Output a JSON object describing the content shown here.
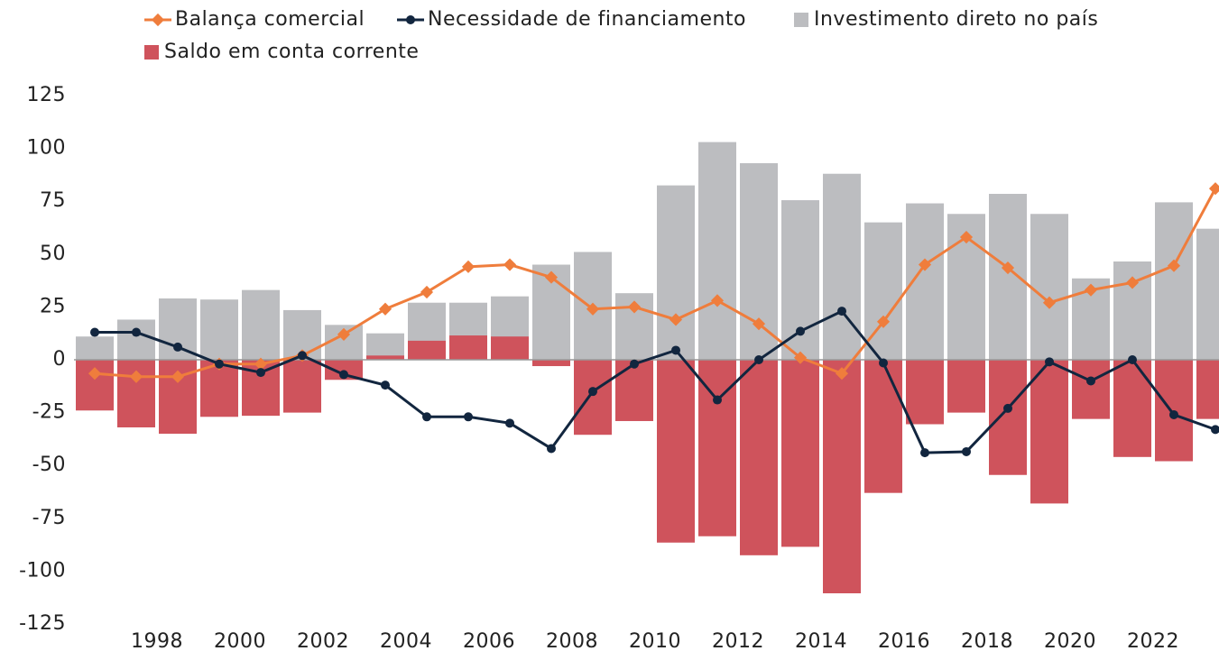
{
  "chart_data": {
    "type": "bar",
    "categories": [
      null,
      "1998",
      null,
      "2000",
      null,
      "2002",
      null,
      "2004",
      null,
      "2006",
      null,
      "2008",
      null,
      "2010",
      null,
      "2012",
      null,
      "2014",
      null,
      "2016",
      null,
      "2018",
      null,
      "2020",
      null,
      "2022",
      null,
      null
    ],
    "series": [
      {
        "name": "Balança comercial",
        "type": "line",
        "color": "#ef7d3c",
        "values": [
          -6.5,
          -8,
          -8,
          -2,
          -2,
          2,
          12,
          24,
          32,
          44,
          45,
          39,
          24,
          25,
          19,
          28,
          17,
          1,
          -6.5,
          18,
          45,
          58,
          43.5,
          27,
          33,
          36.5,
          44.5,
          81
        ]
      },
      {
        "name": "Necessidade de financiamento",
        "type": "line",
        "color": "#12263f",
        "values": [
          13,
          13,
          6,
          -2,
          -6,
          2,
          -7,
          -12,
          -27,
          -27,
          -30,
          -42,
          -15,
          -2,
          4.5,
          -19,
          0,
          13.5,
          23,
          -1.5,
          -44,
          -43.5,
          -23,
          -1,
          -10,
          0,
          -26,
          -33
        ]
      },
      {
        "name": "Investimento direto no país",
        "type": "bar",
        "color": "#bcbdc0",
        "values": [
          11,
          19,
          29,
          28.5,
          33,
          23.5,
          16.5,
          12.5,
          27,
          27,
          30,
          45,
          51,
          31.5,
          82.5,
          103,
          93,
          75.5,
          88,
          65,
          74,
          69,
          78.5,
          69,
          38.5,
          46.5,
          74.5,
          62
        ]
      },
      {
        "name": "Saldo em conta corrente",
        "type": "bar",
        "color": "#cf535c",
        "values": [
          -24,
          -32,
          -35,
          -27,
          -26.5,
          -25,
          -9.5,
          2,
          9,
          11.5,
          11,
          -3,
          -35.5,
          -29,
          -86.5,
          -83.5,
          -92.5,
          -88.5,
          -110.5,
          -63,
          -30.5,
          -25,
          -54.5,
          -68,
          -28,
          -46,
          -48,
          -28
        ]
      }
    ],
    "ylim": [
      -125,
      125
    ],
    "yticks": [
      -125,
      -100,
      -75,
      -50,
      -25,
      0,
      25,
      50,
      75,
      100,
      125
    ],
    "grid": false
  }
}
